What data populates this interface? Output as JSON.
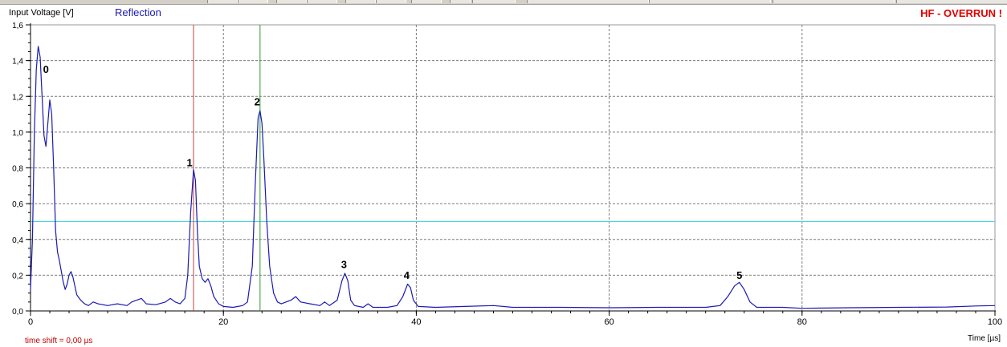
{
  "chart_data": {
    "type": "line",
    "ylabel": "Input Voltage [V]",
    "xlabel": "Time [µs]",
    "xlim": [
      0,
      100
    ],
    "ylim": [
      0,
      1.6
    ],
    "x_ticks": [
      0,
      20,
      40,
      60,
      80,
      100
    ],
    "y_ticks": [
      "0,0",
      "0,2",
      "0,4",
      "0,6",
      "0,8",
      "1,0",
      "1,2",
      "1,4",
      "1,6"
    ],
    "x_minor_step": 2,
    "y_minor_step": 0.05,
    "grid": true,
    "series": [
      {
        "name": "Reflection",
        "color": "#1a1ab4",
        "points": [
          [
            0,
            0.12
          ],
          [
            0.2,
            0.4
          ],
          [
            0.4,
            1.0
          ],
          [
            0.6,
            1.35
          ],
          [
            0.8,
            1.48
          ],
          [
            1.0,
            1.42
          ],
          [
            1.2,
            1.2
          ],
          [
            1.4,
            0.98
          ],
          [
            1.6,
            0.92
          ],
          [
            1.8,
            1.05
          ],
          [
            2.0,
            1.18
          ],
          [
            2.2,
            1.1
          ],
          [
            2.4,
            0.8
          ],
          [
            2.6,
            0.45
          ],
          [
            2.8,
            0.33
          ],
          [
            3.0,
            0.28
          ],
          [
            3.2,
            0.22
          ],
          [
            3.4,
            0.16
          ],
          [
            3.6,
            0.12
          ],
          [
            3.8,
            0.15
          ],
          [
            4.0,
            0.2
          ],
          [
            4.2,
            0.22
          ],
          [
            4.4,
            0.19
          ],
          [
            4.6,
            0.14
          ],
          [
            4.8,
            0.09
          ],
          [
            5.2,
            0.06
          ],
          [
            5.6,
            0.04
          ],
          [
            6.0,
            0.03
          ],
          [
            6.5,
            0.05
          ],
          [
            7.0,
            0.04
          ],
          [
            8.0,
            0.03
          ],
          [
            9.0,
            0.04
          ],
          [
            10.0,
            0.03
          ],
          [
            10.5,
            0.05
          ],
          [
            11.0,
            0.06
          ],
          [
            11.5,
            0.07
          ],
          [
            12.0,
            0.04
          ],
          [
            13.0,
            0.035
          ],
          [
            14.0,
            0.05
          ],
          [
            14.5,
            0.07
          ],
          [
            15.0,
            0.05
          ],
          [
            15.5,
            0.04
          ],
          [
            16.0,
            0.07
          ],
          [
            16.3,
            0.2
          ],
          [
            16.6,
            0.55
          ],
          [
            16.9,
            0.79
          ],
          [
            17.1,
            0.73
          ],
          [
            17.3,
            0.45
          ],
          [
            17.5,
            0.25
          ],
          [
            17.8,
            0.18
          ],
          [
            18.1,
            0.16
          ],
          [
            18.4,
            0.18
          ],
          [
            18.7,
            0.14
          ],
          [
            19.0,
            0.08
          ],
          [
            19.5,
            0.04
          ],
          [
            20.0,
            0.025
          ],
          [
            21.0,
            0.02
          ],
          [
            22.0,
            0.03
          ],
          [
            22.5,
            0.05
          ],
          [
            23.0,
            0.25
          ],
          [
            23.3,
            0.7
          ],
          [
            23.6,
            1.08
          ],
          [
            23.8,
            1.12
          ],
          [
            24.0,
            1.05
          ],
          [
            24.2,
            0.85
          ],
          [
            24.5,
            0.5
          ],
          [
            24.8,
            0.25
          ],
          [
            25.2,
            0.1
          ],
          [
            25.6,
            0.05
          ],
          [
            26.0,
            0.04
          ],
          [
            27.0,
            0.06
          ],
          [
            27.5,
            0.08
          ],
          [
            28.0,
            0.05
          ],
          [
            29.0,
            0.04
          ],
          [
            30.0,
            0.03
          ],
          [
            30.5,
            0.05
          ],
          [
            31.0,
            0.03
          ],
          [
            31.8,
            0.06
          ],
          [
            32.3,
            0.17
          ],
          [
            32.6,
            0.21
          ],
          [
            32.9,
            0.17
          ],
          [
            33.2,
            0.06
          ],
          [
            33.6,
            0.03
          ],
          [
            34.5,
            0.02
          ],
          [
            35.0,
            0.04
          ],
          [
            35.5,
            0.02
          ],
          [
            37.0,
            0.02
          ],
          [
            38.0,
            0.03
          ],
          [
            38.6,
            0.08
          ],
          [
            39.1,
            0.15
          ],
          [
            39.4,
            0.13
          ],
          [
            39.7,
            0.06
          ],
          [
            40.2,
            0.025
          ],
          [
            42.0,
            0.02
          ],
          [
            45.0,
            0.025
          ],
          [
            48.0,
            0.03
          ],
          [
            50.0,
            0.02
          ],
          [
            55.0,
            0.02
          ],
          [
            60.0,
            0.018
          ],
          [
            65.0,
            0.02
          ],
          [
            70.0,
            0.02
          ],
          [
            71.5,
            0.03
          ],
          [
            72.3,
            0.08
          ],
          [
            73.0,
            0.14
          ],
          [
            73.5,
            0.16
          ],
          [
            74.0,
            0.12
          ],
          [
            74.6,
            0.05
          ],
          [
            75.3,
            0.02
          ],
          [
            78.0,
            0.02
          ],
          [
            80.0,
            0.015
          ],
          [
            85.0,
            0.018
          ],
          [
            90.0,
            0.02
          ],
          [
            95.0,
            0.022
          ],
          [
            98.0,
            0.028
          ],
          [
            100.0,
            0.03
          ]
        ]
      }
    ],
    "markers": [
      {
        "label": "0",
        "x": 1.6,
        "y": 1.33
      },
      {
        "label": "1",
        "x": 16.5,
        "y": 0.81
      },
      {
        "label": "2",
        "x": 23.5,
        "y": 1.15
      },
      {
        "label": "3",
        "x": 32.5,
        "y": 0.24
      },
      {
        "label": "4",
        "x": 39.0,
        "y": 0.18
      },
      {
        "label": "5",
        "x": 73.5,
        "y": 0.18
      }
    ],
    "cursors": [
      {
        "x": 16.9,
        "color": "#c04040"
      },
      {
        "x": 23.8,
        "color": "#2a9a2a"
      }
    ],
    "threshold": {
      "y": 0.5,
      "color": "#40d8e0"
    }
  },
  "status": "HF - OVERRUN !",
  "time_shift": "time shift = 0,00 µs"
}
